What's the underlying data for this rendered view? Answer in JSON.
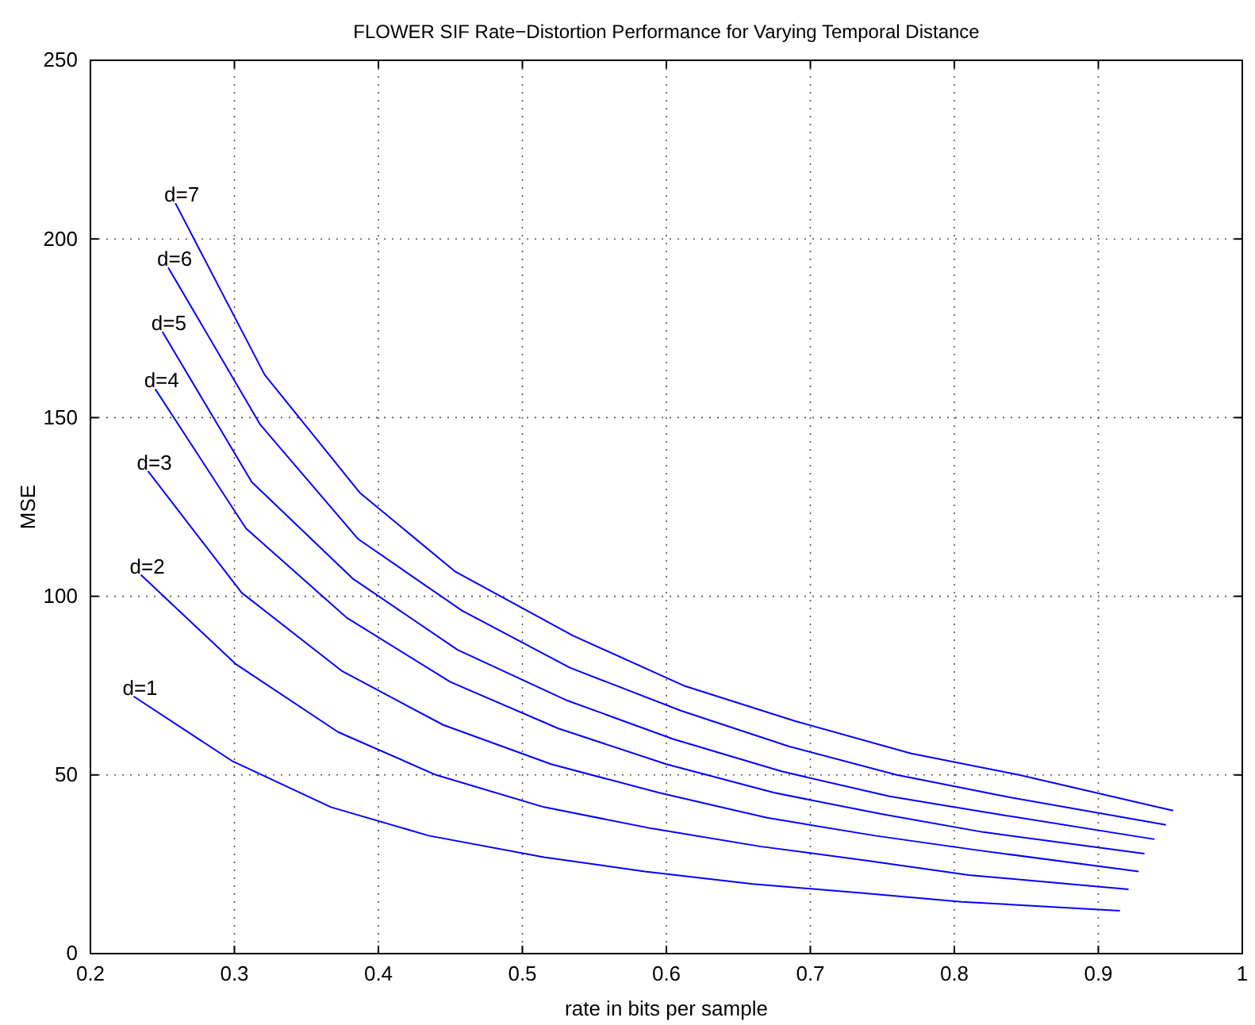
{
  "chart_data": {
    "type": "line",
    "title": "FLOWER SIF Rate−Distortion Performance for Varying Temporal Distance",
    "xlabel": "rate in bits per sample",
    "ylabel": "MSE",
    "xlim": [
      0.2,
      1
    ],
    "ylim": [
      0,
      250
    ],
    "xticks": [
      0.2,
      0.3,
      0.4,
      0.5,
      0.6,
      0.7,
      0.8,
      0.9,
      1
    ],
    "yticks": [
      0,
      50,
      100,
      150,
      200,
      250
    ],
    "grid": true,
    "marker": "none",
    "line_style": "solid",
    "series": [
      {
        "name": "d=1",
        "color": "#0000ff",
        "x": [
          0.23,
          0.298,
          0.367,
          0.435,
          0.515,
          0.585,
          0.66,
          0.735,
          0.805,
          0.915
        ],
        "values": [
          72,
          54,
          41,
          33,
          27,
          23,
          19.5,
          17,
          14.5,
          12
        ]
      },
      {
        "name": "d=2",
        "color": "#0000ff",
        "x": [
          0.235,
          0.301,
          0.372,
          0.44,
          0.515,
          0.59,
          0.665,
          0.74,
          0.81,
          0.921
        ],
        "values": [
          106,
          81,
          62,
          50,
          41,
          35,
          30,
          26,
          22,
          18
        ]
      },
      {
        "name": "d=3",
        "color": "#0000ff",
        "x": [
          0.24,
          0.305,
          0.375,
          0.445,
          0.52,
          0.595,
          0.67,
          0.745,
          0.815,
          0.928
        ],
        "values": [
          135,
          101,
          79,
          64,
          53,
          45,
          38,
          33,
          29,
          23
        ]
      },
      {
        "name": "d=4",
        "color": "#0000ff",
        "x": [
          0.245,
          0.308,
          0.378,
          0.45,
          0.525,
          0.6,
          0.675,
          0.75,
          0.82,
          0.932
        ],
        "values": [
          158,
          119,
          94,
          76,
          63,
          53,
          45,
          39,
          34,
          28
        ]
      },
      {
        "name": "d=5",
        "color": "#0000ff",
        "x": [
          0.25,
          0.312,
          0.382,
          0.455,
          0.53,
          0.605,
          0.68,
          0.755,
          0.83,
          0.939
        ],
        "values": [
          174,
          132,
          105,
          85,
          71,
          60,
          51,
          44,
          39,
          32
        ]
      },
      {
        "name": "d=6",
        "color": "#0000ff",
        "x": [
          0.254,
          0.318,
          0.386,
          0.458,
          0.533,
          0.61,
          0.685,
          0.76,
          0.835,
          0.947
        ],
        "values": [
          192,
          148,
          116,
          96,
          80,
          68,
          58,
          50,
          44,
          36
        ]
      },
      {
        "name": "d=7",
        "color": "#0000ff",
        "x": [
          0.259,
          0.321,
          0.387,
          0.453,
          0.535,
          0.612,
          0.69,
          0.77,
          0.845,
          0.952
        ],
        "values": [
          210,
          162,
          129,
          107,
          89,
          75,
          65,
          56,
          50,
          40
        ]
      }
    ]
  }
}
